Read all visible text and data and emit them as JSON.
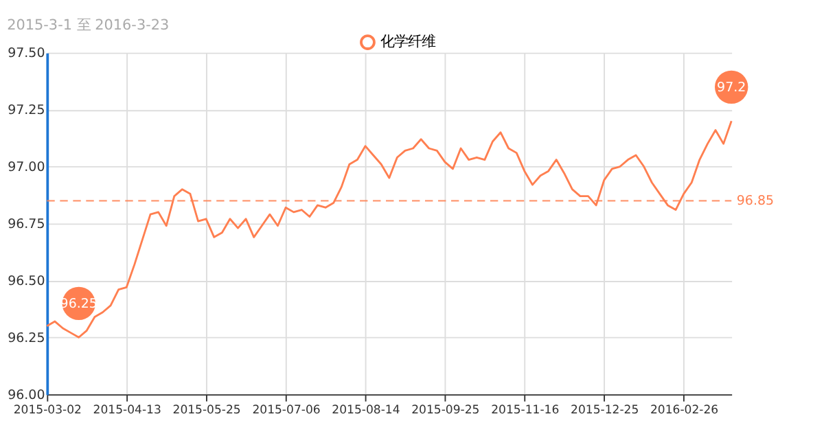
{
  "chart_data": {
    "type": "line",
    "title": "2015-3-1 至 2016-3-23",
    "categories": [
      "2015-03-02",
      null,
      null,
      null,
      null,
      null,
      null,
      null,
      null,
      null,
      "2015-04-13",
      null,
      null,
      null,
      null,
      null,
      null,
      null,
      null,
      null,
      "2015-05-25",
      null,
      null,
      null,
      null,
      null,
      null,
      null,
      null,
      null,
      "2015-07-06",
      null,
      null,
      null,
      null,
      null,
      null,
      null,
      null,
      null,
      "2015-08-14",
      null,
      null,
      null,
      null,
      null,
      null,
      null,
      null,
      null,
      "2015-09-25",
      null,
      null,
      null,
      null,
      null,
      null,
      null,
      null,
      null,
      "2015-11-16",
      null,
      null,
      null,
      null,
      null,
      null,
      null,
      null,
      null,
      "2015-12-25",
      null,
      null,
      null,
      null,
      null,
      null,
      null,
      null,
      null,
      "2016-02-26",
      null,
      null,
      null,
      null,
      null,
      null
    ],
    "series": [
      {
        "name": "化学纤维",
        "color": "#ff7f50",
        "values": [
          96.3,
          96.32,
          96.29,
          96.27,
          96.25,
          96.28,
          96.34,
          96.36,
          96.39,
          96.46,
          96.47,
          96.57,
          96.68,
          96.79,
          96.8,
          96.74,
          96.87,
          96.9,
          96.88,
          96.76,
          96.77,
          96.69,
          96.71,
          96.77,
          96.73,
          96.77,
          96.69,
          96.74,
          96.79,
          96.74,
          96.82,
          96.8,
          96.81,
          96.78,
          96.83,
          96.82,
          96.84,
          96.91,
          97.01,
          97.03,
          97.09,
          97.05,
          97.01,
          96.95,
          97.04,
          97.07,
          97.08,
          97.12,
          97.08,
          97.07,
          97.02,
          96.99,
          97.08,
          97.03,
          97.04,
          97.03,
          97.11,
          97.15,
          97.08,
          97.06,
          96.98,
          96.92,
          96.96,
          96.98,
          97.03,
          96.97,
          96.9,
          96.87,
          96.87,
          96.83,
          96.94,
          96.99,
          97.0,
          97.03,
          97.05,
          97.0,
          96.93,
          96.88,
          96.83,
          96.81,
          96.88,
          96.93,
          97.03,
          97.1,
          97.16,
          97.1,
          97.2
        ]
      }
    ],
    "ylim": [
      96.0,
      97.5
    ],
    "yticks": [
      {
        "value": 96.0,
        "label": "96.00"
      },
      {
        "value": 96.25,
        "label": "96.25"
      },
      {
        "value": 96.5,
        "label": "96.50"
      },
      {
        "value": 96.75,
        "label": "96.75"
      },
      {
        "value": 97.0,
        "label": "97.00"
      },
      {
        "value": 97.25,
        "label": "97.25"
      },
      {
        "value": 97.5,
        "label": "97.50"
      }
    ],
    "ref_lines": [
      {
        "axis": "y",
        "value": 96.85,
        "label": "96.85",
        "color": "#ff7f50",
        "line_style": "dashed"
      }
    ],
    "annotations": [
      {
        "text": "97.2",
        "y": 97.2
      },
      {
        "text": "96.25",
        "y": 96.25
      }
    ],
    "grid": true,
    "legend": "top",
    "line_style": "solid"
  }
}
